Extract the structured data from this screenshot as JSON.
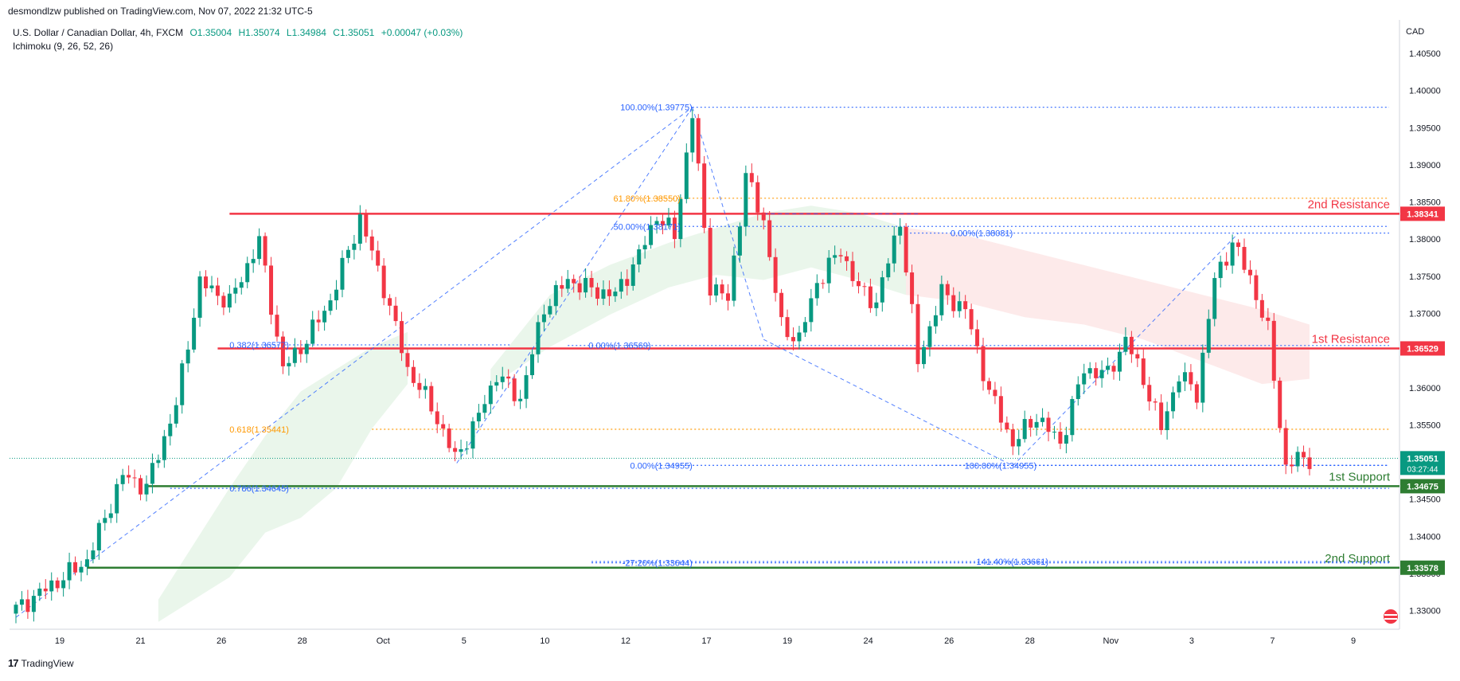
{
  "publisher": "desmondlzw published on TradingView.com, Nov 07, 2022 21:32 UTC-5",
  "symbol": {
    "name": "U.S. Dollar / Canadian Dollar, 4h, FXCM",
    "open": "O1.35004",
    "high": "H1.35074",
    "low": "L1.34984",
    "close": "C1.35051",
    "change": "+0.00047 (+0.03%)"
  },
  "indicator": "Ichimoku (9, 26, 52, 26)",
  "currency": "CAD",
  "footer_brand": "TradingView",
  "colors": {
    "up": "#089981",
    "down": "#f23645",
    "resistance": "#f23645",
    "support": "#2e7d32",
    "fib_blue": "#2962ff",
    "fib_orange": "#ff9800",
    "cloud_green": "#e8f5e9",
    "cloud_red": "#fde8e8"
  },
  "chart_data": {
    "type": "candlestick",
    "timeframe": "4h",
    "y_axis": {
      "ticks": [
        "1.40500",
        "1.40000",
        "1.39500",
        "1.39000",
        "1.38500",
        "1.38000",
        "1.37500",
        "1.37000",
        "1.36500",
        "1.36000",
        "1.35500",
        "1.35000",
        "1.34500",
        "1.34000",
        "1.33500",
        "1.33000"
      ],
      "range": [
        1.3275,
        1.4095
      ]
    },
    "x_axis": {
      "ticks": [
        "19",
        "21",
        "26",
        "28",
        "Oct",
        "5",
        "10",
        "12",
        "17",
        "19",
        "24",
        "26",
        "28",
        "Nov",
        "3",
        "7",
        "9"
      ],
      "index_range": [
        0,
        218
      ]
    },
    "horizontal_levels": [
      {
        "label": "2nd Resistance",
        "price": "1.38341",
        "value": 1.38341,
        "color": "#f23645"
      },
      {
        "label": "1st Resistance",
        "price": "1.36529",
        "value": 1.36529,
        "color": "#f23645"
      },
      {
        "label": "1st Support",
        "price": "1.34675",
        "value": 1.34675,
        "color": "#2e7d32"
      },
      {
        "label": "2nd Support",
        "price": "1.33578",
        "value": 1.33578,
        "color": "#2e7d32"
      }
    ],
    "last_price": {
      "price": "1.35051",
      "value": 1.35051,
      "countdown": "03:27:44"
    },
    "fib_labels": [
      {
        "text": "100.00%(1.39775)",
        "value": 1.39775,
        "color": "#2962ff"
      },
      {
        "text": "61.80%(1.38550)",
        "value": 1.3855,
        "color": "#ff9800"
      },
      {
        "text": "50.00%(1.38171)",
        "value": 1.38171,
        "color": "#2962ff"
      },
      {
        "text": "0.00%(1.38081)",
        "value": 1.38081,
        "color": "#2962ff"
      },
      {
        "text": "0.382(1.36577)",
        "value": 1.36577,
        "color": "#2962ff"
      },
      {
        "text": "0.00%(1.36569)",
        "value": 1.36569,
        "color": "#2962ff"
      },
      {
        "text": "0.618(1.35441)",
        "value": 1.35441,
        "color": "#ff9800"
      },
      {
        "text": "0.00%(1.34955)",
        "value": 1.34955,
        "color": "#2962ff"
      },
      {
        "text": "100.00%(1.34955)",
        "value": 1.34955,
        "color": "#2962ff"
      },
      {
        "text": "0.786(1.34645)",
        "value": 1.34645,
        "color": "#2962ff"
      },
      {
        "text": "-27.20%(1.33644)",
        "value": 1.33644,
        "color": "#2962ff"
      },
      {
        "text": "141.40%(1.33661)",
        "value": 1.33661,
        "color": "#2962ff"
      }
    ],
    "swing_points": [
      {
        "i": 0,
        "v": 1.3302
      },
      {
        "i": 8,
        "v": 1.3345
      },
      {
        "i": 12,
        "v": 1.3368
      },
      {
        "i": 18,
        "v": 1.3482
      },
      {
        "i": 22,
        "v": 1.3466
      },
      {
        "i": 27,
        "v": 1.3578
      },
      {
        "i": 31,
        "v": 1.3742
      },
      {
        "i": 36,
        "v": 1.3715
      },
      {
        "i": 41,
        "v": 1.3798
      },
      {
        "i": 45,
        "v": 1.3625
      },
      {
        "i": 49,
        "v": 1.3665
      },
      {
        "i": 53,
        "v": 1.3718
      },
      {
        "i": 58,
        "v": 1.3828
      },
      {
        "i": 62,
        "v": 1.3735
      },
      {
        "i": 66,
        "v": 1.3625
      },
      {
        "i": 70,
        "v": 1.3575
      },
      {
        "i": 74,
        "v": 1.3505
      },
      {
        "i": 77,
        "v": 1.3545
      },
      {
        "i": 81,
        "v": 1.3618
      },
      {
        "i": 85,
        "v": 1.3585
      },
      {
        "i": 89,
        "v": 1.3708
      },
      {
        "i": 93,
        "v": 1.3745
      },
      {
        "i": 97,
        "v": 1.3732
      },
      {
        "i": 101,
        "v": 1.3725
      },
      {
        "i": 105,
        "v": 1.3778
      },
      {
        "i": 108,
        "v": 1.3832
      },
      {
        "i": 111,
        "v": 1.3805
      },
      {
        "i": 114,
        "v": 1.3968
      },
      {
        "i": 117,
        "v": 1.3738
      },
      {
        "i": 120,
        "v": 1.3718
      },
      {
        "i": 123,
        "v": 1.3885
      },
      {
        "i": 126,
        "v": 1.3825
      },
      {
        "i": 129,
        "v": 1.3682
      },
      {
        "i": 132,
        "v": 1.3665
      },
      {
        "i": 135,
        "v": 1.3742
      },
      {
        "i": 139,
        "v": 1.3785
      },
      {
        "i": 142,
        "v": 1.3732
      },
      {
        "i": 145,
        "v": 1.3715
      },
      {
        "i": 149,
        "v": 1.3825
      },
      {
        "i": 152,
        "v": 1.3635
      },
      {
        "i": 156,
        "v": 1.3728
      },
      {
        "i": 160,
        "v": 1.3705
      },
      {
        "i": 164,
        "v": 1.3595
      },
      {
        "i": 168,
        "v": 1.3525
      },
      {
        "i": 172,
        "v": 1.3562
      },
      {
        "i": 176,
        "v": 1.3525
      },
      {
        "i": 180,
        "v": 1.3625
      },
      {
        "i": 184,
        "v": 1.3618
      },
      {
        "i": 187,
        "v": 1.3665
      },
      {
        "i": 190,
        "v": 1.3612
      },
      {
        "i": 193,
        "v": 1.3545
      },
      {
        "i": 196,
        "v": 1.3618
      },
      {
        "i": 199,
        "v": 1.3592
      },
      {
        "i": 202,
        "v": 1.3745
      },
      {
        "i": 205,
        "v": 1.3795
      },
      {
        "i": 208,
        "v": 1.3748
      },
      {
        "i": 211,
        "v": 1.3675
      },
      {
        "i": 214,
        "v": 1.3492
      },
      {
        "i": 216,
        "v": 1.3505
      },
      {
        "i": 218,
        "v": 1.3505
      }
    ],
    "cloud": [
      {
        "from": 24,
        "to": 66,
        "color": "green",
        "top": [
          [
            24,
            1.3315
          ],
          [
            36,
            1.3465
          ],
          [
            42,
            1.3535
          ],
          [
            48,
            1.3595
          ],
          [
            54,
            1.3625
          ],
          [
            60,
            1.3655
          ],
          [
            66,
            1.3675
          ]
        ],
        "bottom": [
          [
            24,
            1.3285
          ],
          [
            36,
            1.3345
          ],
          [
            42,
            1.3405
          ],
          [
            48,
            1.3425
          ],
          [
            54,
            1.3465
          ],
          [
            60,
            1.3545
          ],
          [
            66,
            1.3605
          ]
        ]
      },
      {
        "from": 80,
        "to": 118,
        "color": "green",
        "top": [
          [
            80,
            1.3625
          ],
          [
            90,
            1.3725
          ],
          [
            100,
            1.3765
          ],
          [
            110,
            1.3795
          ],
          [
            118,
            1.3815
          ]
        ],
        "bottom": [
          [
            80,
            1.3602
          ],
          [
            90,
            1.3655
          ],
          [
            100,
            1.3698
          ],
          [
            110,
            1.3735
          ],
          [
            118,
            1.3752
          ]
        ]
      },
      {
        "from": 118,
        "to": 150,
        "color": "green",
        "top": [
          [
            118,
            1.3815
          ],
          [
            126,
            1.3835
          ],
          [
            134,
            1.3845
          ],
          [
            142,
            1.3835
          ],
          [
            150,
            1.3815
          ]
        ],
        "bottom": [
          [
            118,
            1.3752
          ],
          [
            126,
            1.3745
          ],
          [
            134,
            1.3762
          ],
          [
            142,
            1.3745
          ],
          [
            150,
            1.3725
          ]
        ]
      },
      {
        "from": 150,
        "to": 218,
        "color": "red",
        "top": [
          [
            150,
            1.3815
          ],
          [
            160,
            1.3805
          ],
          [
            170,
            1.3785
          ],
          [
            180,
            1.3765
          ],
          [
            190,
            1.3745
          ],
          [
            200,
            1.3725
          ],
          [
            210,
            1.3705
          ],
          [
            218,
            1.3685
          ]
        ],
        "bottom": [
          [
            150,
            1.3725
          ],
          [
            160,
            1.3715
          ],
          [
            170,
            1.3695
          ],
          [
            180,
            1.3685
          ],
          [
            190,
            1.3665
          ],
          [
            200,
            1.3635
          ],
          [
            210,
            1.3605
          ],
          [
            218,
            1.3612
          ]
        ]
      }
    ],
    "fib_lines": [
      {
        "from_i": 0,
        "from_v": 1.3291,
        "to_i": 114,
        "to_v": 1.39775,
        "style": "dashed"
      },
      {
        "from_i": 114,
        "from_v": 1.39775,
        "to_i": 126,
        "to_v": 1.3665,
        "style": "dashed"
      },
      {
        "from_i": 114,
        "from_v": 1.39775,
        "to_i": 74,
        "to_v": 1.3495,
        "style": "dashed"
      },
      {
        "from_i": 126,
        "from_v": 1.3665,
        "to_i": 168,
        "to_v": 1.3495,
        "style": "dashed"
      },
      {
        "from_i": 168,
        "from_v": 1.3495,
        "to_i": 206,
        "to_v": 1.3808,
        "style": "dashed"
      },
      {
        "from_i": 126,
        "from_v": 1.38341,
        "to_i": 152,
        "to_v": 1.38341,
        "style": "dashed"
      }
    ]
  }
}
